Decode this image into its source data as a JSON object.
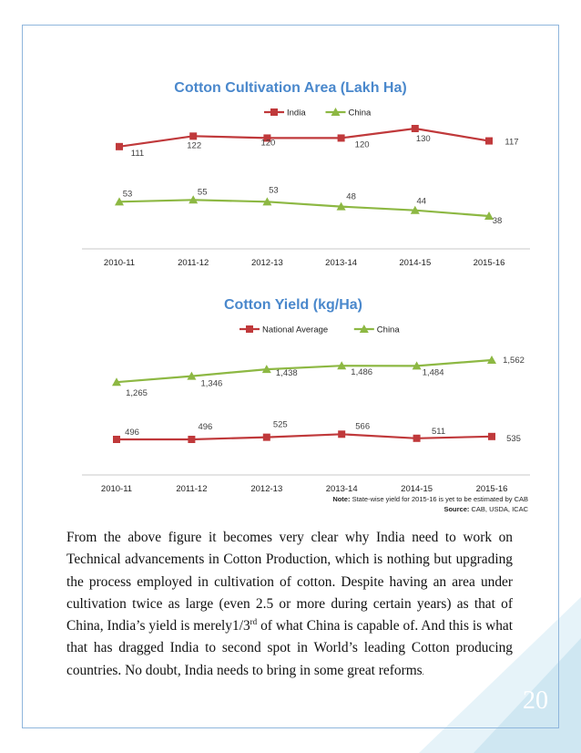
{
  "chart_data": [
    {
      "type": "line",
      "title": "Cotton Cultivation Area (Lakh Ha)",
      "categories": [
        "2010-11",
        "2011-12",
        "2012-13",
        "2013-14",
        "2014-15",
        "2015-16"
      ],
      "labels": [
        "111",
        "122",
        "120",
        "120",
        "130",
        "117",
        "53",
        "55",
        "53",
        "48",
        "44",
        "38"
      ],
      "series": [
        {
          "name": "India",
          "color": "#c0393b",
          "marker": "square",
          "values": [
            111,
            122,
            120,
            120,
            130,
            117
          ]
        },
        {
          "name": "China",
          "color": "#8db843",
          "marker": "triangle",
          "values": [
            53,
            55,
            53,
            48,
            44,
            38
          ]
        }
      ]
    },
    {
      "type": "line",
      "title": "Cotton Yield (kg/Ha)",
      "categories": [
        "2010-11",
        "2011-12",
        "2012-13",
        "2013-14",
        "2014-15",
        "2015-16"
      ],
      "labels": [
        "1,265",
        "1,346",
        "1,438",
        "1,486",
        "1,484",
        "1,562",
        "496",
        "496",
        "525",
        "566",
        "511",
        "535"
      ],
      "series": [
        {
          "name": "China",
          "color": "#8db843",
          "marker": "triangle",
          "values": [
            1265,
            1346,
            1438,
            1486,
            1484,
            1562
          ]
        },
        {
          "name": "National Average",
          "color": "#c0393b",
          "marker": "square",
          "values": [
            496,
            496,
            525,
            566,
            511,
            535
          ]
        }
      ],
      "legend_order": [
        "National Average",
        "China"
      ]
    }
  ],
  "note": {
    "label": "Note:",
    "text": " State-wise yield for 2015-16 is yet to be estimated by CAB"
  },
  "source": {
    "label": "Source:",
    "text": " CAB, USDA, ICAC"
  },
  "paragraph": {
    "part1": "From the above figure it becomes very clear why India need to work on Technical advancements in Cotton Production, which is nothing but upgrading the process employed in cultivation of cotton. Despite having an area under cultivation twice as large (even 2.5 or more during certain years) as that of China, India’s yield is merely1/3",
    "sup": "rd",
    "part2": " of what China is capable of. And this is what that has dragged India to second spot in World’s leading Cotton producing countries. No doubt, India needs to bring in some great reforms",
    "tail": "."
  },
  "page_number": "20",
  "colors": {
    "frame": "#8fb6dc",
    "corner_dark": "#cfe7f2",
    "corner_light": "#e6f3f9"
  }
}
